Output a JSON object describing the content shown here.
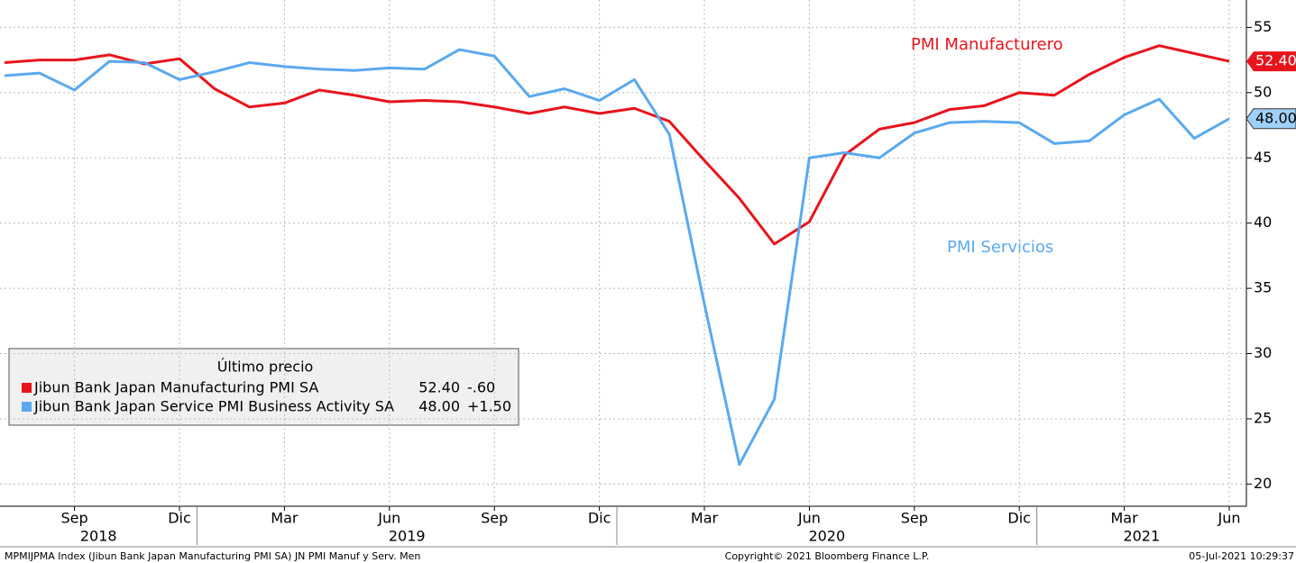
{
  "chart_data": {
    "type": "line",
    "categories": [
      null,
      null,
      "Sep",
      null,
      null,
      "Dic",
      null,
      null,
      "Mar",
      null,
      null,
      "Jun",
      null,
      null,
      "Sep",
      null,
      null,
      "Dic",
      null,
      null,
      "Mar",
      null,
      null,
      "Jun",
      null,
      null,
      "Sep",
      null,
      null,
      "Dic",
      null,
      null,
      "Mar",
      null,
      null,
      "Jun"
    ],
    "year_labels": [
      "2018",
      "2019",
      "2020",
      "2021"
    ],
    "series": [
      {
        "name": "Jibun Bank Japan Manufacturing PMI SA",
        "color": "#e8141c",
        "values": [
          52.3,
          52.5,
          52.5,
          52.9,
          52.2,
          52.6,
          50.3,
          48.9,
          49.2,
          50.2,
          49.8,
          49.3,
          49.4,
          49.3,
          48.9,
          48.4,
          48.9,
          48.4,
          48.8,
          47.8,
          44.8,
          41.9,
          38.4,
          40.1,
          45.2,
          47.2,
          47.7,
          48.7,
          49.0,
          50.0,
          49.8,
          51.4,
          52.7,
          53.6,
          53.0,
          52.4
        ],
        "value_labels": [
          null,
          null,
          null,
          null,
          null,
          null,
          null,
          null,
          null,
          null,
          null,
          null,
          null,
          null,
          null,
          null,
          null,
          null,
          null,
          null,
          null,
          null,
          null,
          null,
          null,
          null,
          null,
          null,
          null,
          null,
          null,
          null,
          null,
          null,
          null,
          "52.40"
        ],
        "change": {
          "value": -0.6,
          "label": "-.60"
        }
      },
      {
        "name": "Jibun Bank Japan Service PMI Business Activity SA",
        "color": "#5aa9ee",
        "values": [
          51.3,
          51.5,
          50.2,
          52.4,
          52.3,
          51.0,
          51.6,
          52.3,
          52.0,
          51.8,
          51.7,
          51.9,
          51.8,
          53.3,
          52.8,
          49.7,
          50.3,
          49.4,
          51.0,
          46.8,
          33.8,
          21.5,
          26.5,
          45.0,
          45.4,
          45.0,
          46.9,
          47.7,
          47.8,
          47.7,
          46.1,
          46.3,
          48.3,
          49.5,
          46.5,
          48.0
        ],
        "value_labels": [
          null,
          null,
          null,
          null,
          null,
          null,
          null,
          null,
          null,
          null,
          null,
          null,
          null,
          null,
          null,
          null,
          null,
          null,
          null,
          null,
          null,
          null,
          null,
          null,
          null,
          null,
          null,
          null,
          null,
          null,
          null,
          null,
          null,
          null,
          null,
          "48.00"
        ],
        "change": {
          "value": 1.5,
          "label": "+1.50"
        }
      }
    ],
    "ylim": [
      18.3,
      57.1
    ],
    "yticks": [
      20,
      25,
      30,
      35,
      40,
      45,
      50,
      55
    ],
    "grid": true,
    "legend_title": "Último precio",
    "annotations": [
      "PMI Manufacturero",
      "PMI Servicios"
    ],
    "footer": {
      "left": "MPMIJPMA Index (Jibun Bank Japan Manufacturing PMI SA) JN PMI Manuf y Serv.  Men",
      "center": "Copyright© 2021 Bloomberg Finance L.P.",
      "right": "05-Jul-2021 10:29:37"
    }
  }
}
